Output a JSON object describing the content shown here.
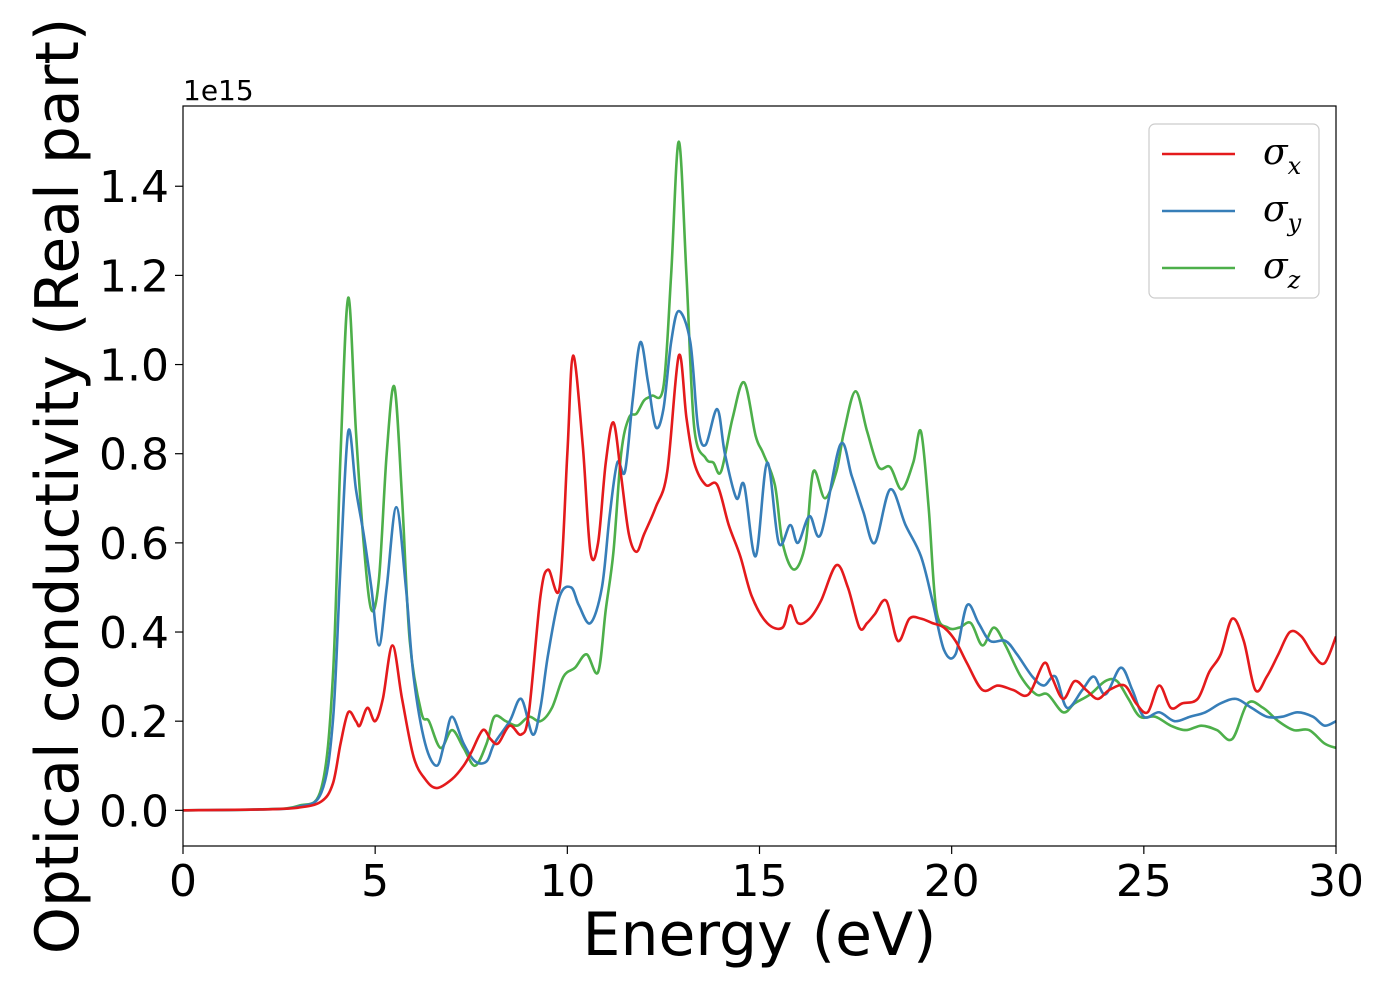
{
  "chart_data": {
    "type": "line",
    "xlabel": "Energy (eV)",
    "ylabel": "Optical conductivity (Real part)",
    "y_offset_label": "1e15",
    "xlim": [
      0,
      30
    ],
    "ylim": [
      -0.08,
      1.58
    ],
    "x_ticks": [
      0,
      5,
      10,
      15,
      20,
      25,
      30
    ],
    "y_ticks": [
      0.0,
      0.2,
      0.4,
      0.6,
      0.8,
      1.0,
      1.2,
      1.4
    ],
    "x_tick_labels": [
      "0",
      "5",
      "10",
      "15",
      "20",
      "25",
      "30"
    ],
    "y_tick_labels": [
      "0.0",
      "0.2",
      "0.4",
      "0.6",
      "0.8",
      "1.0",
      "1.2",
      "1.4"
    ],
    "grid": false,
    "legend_position": "top-right",
    "series": [
      {
        "name": "σx",
        "symbol": "σ",
        "subscript": "x",
        "color": "#e41a1c",
        "points": [
          [
            0,
            0
          ],
          [
            2,
            0.002
          ],
          [
            3,
            0.006
          ],
          [
            3.6,
            0.02
          ],
          [
            3.9,
            0.06
          ],
          [
            4.1,
            0.15
          ],
          [
            4.3,
            0.22
          ],
          [
            4.5,
            0.2
          ],
          [
            4.6,
            0.19
          ],
          [
            4.8,
            0.23
          ],
          [
            5.0,
            0.2
          ],
          [
            5.2,
            0.25
          ],
          [
            5.45,
            0.37
          ],
          [
            5.7,
            0.25
          ],
          [
            6.0,
            0.12
          ],
          [
            6.3,
            0.07
          ],
          [
            6.6,
            0.05
          ],
          [
            7.0,
            0.07
          ],
          [
            7.3,
            0.1
          ],
          [
            7.5,
            0.13
          ],
          [
            7.8,
            0.18
          ],
          [
            8.0,
            0.16
          ],
          [
            8.2,
            0.15
          ],
          [
            8.5,
            0.19
          ],
          [
            8.8,
            0.17
          ],
          [
            9.0,
            0.22
          ],
          [
            9.3,
            0.48
          ],
          [
            9.5,
            0.54
          ],
          [
            9.8,
            0.5
          ],
          [
            10.0,
            0.8
          ],
          [
            10.15,
            1.02
          ],
          [
            10.4,
            0.82
          ],
          [
            10.6,
            0.58
          ],
          [
            10.8,
            0.6
          ],
          [
            11.0,
            0.78
          ],
          [
            11.2,
            0.87
          ],
          [
            11.4,
            0.75
          ],
          [
            11.6,
            0.62
          ],
          [
            11.8,
            0.58
          ],
          [
            12.0,
            0.62
          ],
          [
            12.3,
            0.68
          ],
          [
            12.6,
            0.76
          ],
          [
            12.9,
            1.02
          ],
          [
            13.1,
            0.88
          ],
          [
            13.3,
            0.78
          ],
          [
            13.6,
            0.73
          ],
          [
            13.9,
            0.73
          ],
          [
            14.2,
            0.64
          ],
          [
            14.5,
            0.57
          ],
          [
            14.8,
            0.48
          ],
          [
            15.2,
            0.42
          ],
          [
            15.6,
            0.41
          ],
          [
            15.8,
            0.46
          ],
          [
            16.0,
            0.42
          ],
          [
            16.3,
            0.43
          ],
          [
            16.6,
            0.47
          ],
          [
            17.0,
            0.55
          ],
          [
            17.3,
            0.5
          ],
          [
            17.6,
            0.41
          ],
          [
            17.8,
            0.42
          ],
          [
            18.0,
            0.44
          ],
          [
            18.3,
            0.47
          ],
          [
            18.6,
            0.38
          ],
          [
            18.9,
            0.43
          ],
          [
            19.2,
            0.43
          ],
          [
            19.5,
            0.42
          ],
          [
            19.8,
            0.41
          ],
          [
            20.1,
            0.38
          ],
          [
            20.4,
            0.33
          ],
          [
            20.8,
            0.27
          ],
          [
            21.2,
            0.28
          ],
          [
            21.6,
            0.27
          ],
          [
            22.0,
            0.26
          ],
          [
            22.4,
            0.33
          ],
          [
            22.6,
            0.3
          ],
          [
            22.9,
            0.25
          ],
          [
            23.2,
            0.29
          ],
          [
            23.5,
            0.27
          ],
          [
            23.8,
            0.25
          ],
          [
            24.1,
            0.27
          ],
          [
            24.5,
            0.28
          ],
          [
            24.8,
            0.24
          ],
          [
            25.1,
            0.22
          ],
          [
            25.4,
            0.28
          ],
          [
            25.7,
            0.23
          ],
          [
            26.0,
            0.24
          ],
          [
            26.4,
            0.25
          ],
          [
            26.7,
            0.31
          ],
          [
            27.0,
            0.35
          ],
          [
            27.3,
            0.43
          ],
          [
            27.6,
            0.38
          ],
          [
            27.9,
            0.27
          ],
          [
            28.2,
            0.3
          ],
          [
            28.5,
            0.35
          ],
          [
            28.8,
            0.4
          ],
          [
            29.1,
            0.39
          ],
          [
            29.4,
            0.35
          ],
          [
            29.7,
            0.33
          ],
          [
            30.0,
            0.39
          ]
        ]
      },
      {
        "name": "σy",
        "symbol": "σ",
        "subscript": "y",
        "color": "#377eb8",
        "points": [
          [
            0,
            0
          ],
          [
            2,
            0.002
          ],
          [
            3,
            0.008
          ],
          [
            3.6,
            0.04
          ],
          [
            3.9,
            0.2
          ],
          [
            4.1,
            0.55
          ],
          [
            4.3,
            0.85
          ],
          [
            4.5,
            0.72
          ],
          [
            4.7,
            0.62
          ],
          [
            4.9,
            0.5
          ],
          [
            5.1,
            0.37
          ],
          [
            5.3,
            0.5
          ],
          [
            5.55,
            0.68
          ],
          [
            5.8,
            0.5
          ],
          [
            6.0,
            0.3
          ],
          [
            6.3,
            0.15
          ],
          [
            6.6,
            0.1
          ],
          [
            6.8,
            0.15
          ],
          [
            7.0,
            0.21
          ],
          [
            7.3,
            0.15
          ],
          [
            7.6,
            0.11
          ],
          [
            7.9,
            0.11
          ],
          [
            8.1,
            0.15
          ],
          [
            8.5,
            0.2
          ],
          [
            8.8,
            0.25
          ],
          [
            9.1,
            0.17
          ],
          [
            9.3,
            0.23
          ],
          [
            9.5,
            0.35
          ],
          [
            9.8,
            0.48
          ],
          [
            10.1,
            0.5
          ],
          [
            10.3,
            0.46
          ],
          [
            10.6,
            0.42
          ],
          [
            10.9,
            0.5
          ],
          [
            11.1,
            0.66
          ],
          [
            11.3,
            0.78
          ],
          [
            11.5,
            0.76
          ],
          [
            11.7,
            0.92
          ],
          [
            11.9,
            1.05
          ],
          [
            12.1,
            0.96
          ],
          [
            12.3,
            0.86
          ],
          [
            12.5,
            0.9
          ],
          [
            12.7,
            1.05
          ],
          [
            12.9,
            1.12
          ],
          [
            13.2,
            1.05
          ],
          [
            13.4,
            0.86
          ],
          [
            13.6,
            0.82
          ],
          [
            13.9,
            0.9
          ],
          [
            14.1,
            0.8
          ],
          [
            14.4,
            0.7
          ],
          [
            14.6,
            0.73
          ],
          [
            14.9,
            0.57
          ],
          [
            15.2,
            0.78
          ],
          [
            15.5,
            0.6
          ],
          [
            15.8,
            0.64
          ],
          [
            16.0,
            0.6
          ],
          [
            16.3,
            0.66
          ],
          [
            16.6,
            0.62
          ],
          [
            17.1,
            0.82
          ],
          [
            17.4,
            0.75
          ],
          [
            17.7,
            0.67
          ],
          [
            18.0,
            0.6
          ],
          [
            18.4,
            0.72
          ],
          [
            18.8,
            0.64
          ],
          [
            19.2,
            0.57
          ],
          [
            19.5,
            0.47
          ],
          [
            19.8,
            0.36
          ],
          [
            20.1,
            0.35
          ],
          [
            20.4,
            0.46
          ],
          [
            20.7,
            0.42
          ],
          [
            21.0,
            0.38
          ],
          [
            21.4,
            0.38
          ],
          [
            21.7,
            0.35
          ],
          [
            22.1,
            0.3
          ],
          [
            22.4,
            0.28
          ],
          [
            22.7,
            0.3
          ],
          [
            23.0,
            0.23
          ],
          [
            23.4,
            0.27
          ],
          [
            23.7,
            0.3
          ],
          [
            24.0,
            0.26
          ],
          [
            24.4,
            0.32
          ],
          [
            24.7,
            0.27
          ],
          [
            25.0,
            0.21
          ],
          [
            25.4,
            0.22
          ],
          [
            25.8,
            0.2
          ],
          [
            26.2,
            0.21
          ],
          [
            26.6,
            0.22
          ],
          [
            27.0,
            0.24
          ],
          [
            27.4,
            0.25
          ],
          [
            27.8,
            0.23
          ],
          [
            28.2,
            0.21
          ],
          [
            28.6,
            0.21
          ],
          [
            29.0,
            0.22
          ],
          [
            29.4,
            0.21
          ],
          [
            29.7,
            0.19
          ],
          [
            30.0,
            0.2
          ]
        ]
      },
      {
        "name": "σz",
        "symbol": "σ",
        "subscript": "z",
        "color": "#4daf4a",
        "points": [
          [
            0,
            0
          ],
          [
            2,
            0.002
          ],
          [
            3,
            0.01
          ],
          [
            3.6,
            0.05
          ],
          [
            3.9,
            0.3
          ],
          [
            4.1,
            0.8
          ],
          [
            4.3,
            1.15
          ],
          [
            4.5,
            0.85
          ],
          [
            4.7,
            0.6
          ],
          [
            4.9,
            0.45
          ],
          [
            5.1,
            0.52
          ],
          [
            5.3,
            0.8
          ],
          [
            5.5,
            0.95
          ],
          [
            5.7,
            0.7
          ],
          [
            5.9,
            0.38
          ],
          [
            6.2,
            0.22
          ],
          [
            6.4,
            0.2
          ],
          [
            6.7,
            0.14
          ],
          [
            7.0,
            0.18
          ],
          [
            7.3,
            0.14
          ],
          [
            7.6,
            0.1
          ],
          [
            7.9,
            0.15
          ],
          [
            8.1,
            0.21
          ],
          [
            8.4,
            0.2
          ],
          [
            8.7,
            0.19
          ],
          [
            9.0,
            0.21
          ],
          [
            9.3,
            0.2
          ],
          [
            9.6,
            0.23
          ],
          [
            9.9,
            0.3
          ],
          [
            10.2,
            0.32
          ],
          [
            10.5,
            0.35
          ],
          [
            10.8,
            0.31
          ],
          [
            11.0,
            0.45
          ],
          [
            11.2,
            0.58
          ],
          [
            11.4,
            0.8
          ],
          [
            11.6,
            0.88
          ],
          [
            11.8,
            0.89
          ],
          [
            12.0,
            0.92
          ],
          [
            12.2,
            0.93
          ],
          [
            12.5,
            0.95
          ],
          [
            12.7,
            1.2
          ],
          [
            12.9,
            1.5
          ],
          [
            13.1,
            1.2
          ],
          [
            13.3,
            0.86
          ],
          [
            13.6,
            0.79
          ],
          [
            13.8,
            0.78
          ],
          [
            14.0,
            0.76
          ],
          [
            14.3,
            0.88
          ],
          [
            14.6,
            0.96
          ],
          [
            14.9,
            0.84
          ],
          [
            15.1,
            0.8
          ],
          [
            15.4,
            0.73
          ],
          [
            15.6,
            0.6
          ],
          [
            15.9,
            0.54
          ],
          [
            16.2,
            0.6
          ],
          [
            16.4,
            0.76
          ],
          [
            16.7,
            0.7
          ],
          [
            17.0,
            0.76
          ],
          [
            17.2,
            0.85
          ],
          [
            17.5,
            0.94
          ],
          [
            17.8,
            0.85
          ],
          [
            18.1,
            0.77
          ],
          [
            18.4,
            0.77
          ],
          [
            18.7,
            0.72
          ],
          [
            19.0,
            0.78
          ],
          [
            19.2,
            0.85
          ],
          [
            19.4,
            0.68
          ],
          [
            19.6,
            0.45
          ],
          [
            19.9,
            0.41
          ],
          [
            20.2,
            0.41
          ],
          [
            20.5,
            0.42
          ],
          [
            20.8,
            0.37
          ],
          [
            21.1,
            0.41
          ],
          [
            21.4,
            0.37
          ],
          [
            21.8,
            0.3
          ],
          [
            22.2,
            0.26
          ],
          [
            22.5,
            0.26
          ],
          [
            22.9,
            0.22
          ],
          [
            23.2,
            0.24
          ],
          [
            23.6,
            0.26
          ],
          [
            24.0,
            0.29
          ],
          [
            24.3,
            0.29
          ],
          [
            24.6,
            0.25
          ],
          [
            24.9,
            0.21
          ],
          [
            25.3,
            0.21
          ],
          [
            25.7,
            0.19
          ],
          [
            26.1,
            0.18
          ],
          [
            26.5,
            0.19
          ],
          [
            26.9,
            0.18
          ],
          [
            27.3,
            0.16
          ],
          [
            27.7,
            0.24
          ],
          [
            28.1,
            0.23
          ],
          [
            28.5,
            0.2
          ],
          [
            28.9,
            0.18
          ],
          [
            29.3,
            0.18
          ],
          [
            29.7,
            0.15
          ],
          [
            30.0,
            0.14
          ]
        ]
      }
    ]
  }
}
